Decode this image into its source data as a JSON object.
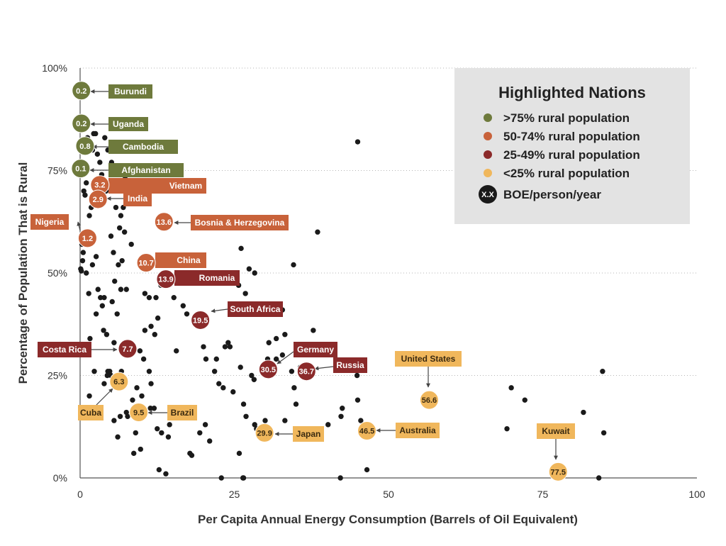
{
  "chart_data": {
    "type": "scatter",
    "xlabel": "Per Capita Annual Energy Consumption (Barrels of Oil Equivalent)",
    "ylabel": "Percentage of Population That is Rural",
    "xlim": [
      0,
      100
    ],
    "ylim": [
      0,
      100
    ],
    "x_ticks": [
      {
        "value": 0,
        "label": "0"
      },
      {
        "value": 25,
        "label": "25"
      },
      {
        "value": 50,
        "label": "50"
      },
      {
        "value": 75,
        "label": "75"
      },
      {
        "value": 100,
        "label": "100"
      }
    ],
    "y_ticks": [
      {
        "value": 0,
        "label": "0%"
      },
      {
        "value": 25,
        "label": "25%"
      },
      {
        "value": 50,
        "label": "50%"
      },
      {
        "value": 75,
        "label": "75%"
      },
      {
        "value": 100,
        "label": "100%"
      }
    ],
    "grid": "horizontal-dotted",
    "colors": {
      "gt75": "#6e7a3c",
      "r50_74": "#c8623a",
      "r25_49": "#8b2a2a",
      "lt25": "#f0b75c",
      "other": "#1a1a1a"
    },
    "legend": {
      "position": "top-right",
      "title": "Highlighted Nations",
      "items": [
        {
          "label": ">75% rural population",
          "group": "gt75"
        },
        {
          "label": "50-74% rural population",
          "group": "r50_74"
        },
        {
          "label": "25-49% rural population",
          "group": "r25_49"
        },
        {
          "label": "<25% rural population",
          "group": "lt25"
        },
        {
          "label": "BOE/person/year",
          "group": "other",
          "badge": "X.X"
        }
      ]
    },
    "highlighted": [
      {
        "name": "Burundi",
        "value": "0.2",
        "x": 0.2,
        "y": 94.5,
        "group": "gt75"
      },
      {
        "name": "Uganda",
        "value": "0.2",
        "x": 0.2,
        "y": 86.5,
        "group": "gt75"
      },
      {
        "name": "Cambodia",
        "value": "0.8",
        "x": 0.8,
        "y": 81,
        "group": "gt75"
      },
      {
        "name": "Afghanistan",
        "value": "0.1",
        "x": 0.1,
        "y": 75.5,
        "group": "gt75"
      },
      {
        "name": "Vietnam",
        "value": "3.2",
        "x": 3.2,
        "y": 71.5,
        "group": "r50_74"
      },
      {
        "name": "India",
        "value": "2.9",
        "x": 2.9,
        "y": 68,
        "group": "r50_74"
      },
      {
        "name": "Nigeria",
        "value": "1.2",
        "x": 1.2,
        "y": 58.5,
        "group": "r50_74"
      },
      {
        "name": "Bosnia & Herzegovina",
        "value": "13.6",
        "x": 13.6,
        "y": 62.5,
        "group": "r50_74"
      },
      {
        "name": "China",
        "value": "10.7",
        "x": 10.7,
        "y": 52.5,
        "group": "r50_74"
      },
      {
        "name": "Romania",
        "value": "13.9",
        "x": 13.9,
        "y": 48.5,
        "group": "r25_49"
      },
      {
        "name": "South Africa",
        "value": "19.5",
        "x": 19.5,
        "y": 38.5,
        "group": "r25_49"
      },
      {
        "name": "Costa Rica",
        "value": "7.7",
        "x": 7.7,
        "y": 31.5,
        "group": "r25_49"
      },
      {
        "name": "Germany",
        "value": "30.5",
        "x": 30.5,
        "y": 26.5,
        "group": "r25_49"
      },
      {
        "name": "Russia",
        "value": "36.7",
        "x": 36.7,
        "y": 26,
        "group": "r25_49"
      },
      {
        "name": "Cuba",
        "value": "6.3",
        "x": 6.3,
        "y": 23.5,
        "group": "lt25"
      },
      {
        "name": "Brazil",
        "value": "9.5",
        "x": 9.5,
        "y": 16,
        "group": "lt25"
      },
      {
        "name": "Japan",
        "value": "29.9",
        "x": 29.9,
        "y": 11,
        "group": "lt25"
      },
      {
        "name": "Australia",
        "value": "46.5",
        "x": 46.5,
        "y": 11.5,
        "group": "lt25"
      },
      {
        "name": "United States",
        "value": "56.6",
        "x": 56.6,
        "y": 19,
        "group": "lt25"
      },
      {
        "name": "Kuwait",
        "value": "77.5",
        "x": 77.5,
        "y": 1.5,
        "group": "lt25"
      }
    ],
    "other_points": [
      [
        0.1,
        51
      ],
      [
        0.2,
        50.5
      ],
      [
        0.3,
        57
      ],
      [
        0.4,
        53
      ],
      [
        0.5,
        55
      ],
      [
        0.6,
        70
      ],
      [
        0.8,
        69
      ],
      [
        1,
        72
      ],
      [
        1.2,
        83
      ],
      [
        1.5,
        64
      ],
      [
        1.8,
        66
      ],
      [
        2,
        80
      ],
      [
        2.2,
        84
      ],
      [
        2.5,
        84
      ],
      [
        2.8,
        79
      ],
      [
        1,
        50
      ],
      [
        1.4,
        45
      ],
      [
        2,
        52
      ],
      [
        2.6,
        54
      ],
      [
        2.9,
        46
      ],
      [
        3.3,
        44
      ],
      [
        3.6,
        42
      ],
      [
        3.9,
        44
      ],
      [
        2.6,
        40
      ],
      [
        1.6,
        34
      ],
      [
        2.3,
        26
      ],
      [
        1.5,
        20
      ],
      [
        3.8,
        36
      ],
      [
        4.3,
        35
      ],
      [
        5.5,
        33
      ],
      [
        6,
        40
      ],
      [
        5.2,
        43
      ],
      [
        5.6,
        48
      ],
      [
        6.6,
        46
      ],
      [
        7.5,
        46
      ],
      [
        6.2,
        52
      ],
      [
        6.8,
        53
      ],
      [
        5.4,
        55
      ],
      [
        6.4,
        61
      ],
      [
        7.2,
        60
      ],
      [
        6.6,
        64
      ],
      [
        5.8,
        66
      ],
      [
        6.6,
        71
      ],
      [
        4,
        83
      ],
      [
        4.5,
        80
      ],
      [
        5.1,
        77
      ],
      [
        6,
        81
      ],
      [
        7.3,
        73
      ],
      [
        10.5,
        36
      ],
      [
        11.5,
        37
      ],
      [
        12.1,
        35
      ],
      [
        10.5,
        45
      ],
      [
        11.2,
        44
      ],
      [
        12.3,
        44
      ],
      [
        13.1,
        47
      ],
      [
        12.6,
        39
      ],
      [
        13.9,
        50
      ],
      [
        15.2,
        44
      ],
      [
        15.6,
        31
      ],
      [
        16.7,
        42
      ],
      [
        17.3,
        40
      ],
      [
        20,
        32
      ],
      [
        20.4,
        29
      ],
      [
        22.1,
        29
      ],
      [
        23.5,
        32
      ],
      [
        24,
        33
      ],
      [
        24.3,
        32
      ],
      [
        26,
        27
      ],
      [
        27.8,
        25
      ],
      [
        28.2,
        24
      ],
      [
        31.2,
        27
      ],
      [
        30.4,
        29
      ],
      [
        31.8,
        29
      ],
      [
        32.8,
        30
      ],
      [
        34.3,
        26
      ],
      [
        34.7,
        22
      ],
      [
        30.6,
        33
      ],
      [
        31.8,
        34
      ],
      [
        33.2,
        35
      ],
      [
        32.8,
        41
      ],
      [
        37.8,
        36
      ],
      [
        35.7,
        27
      ],
      [
        36.1,
        25
      ],
      [
        25.7,
        47
      ],
      [
        27.4,
        51
      ],
      [
        26.8,
        45
      ],
      [
        28.3,
        50
      ],
      [
        26.1,
        56
      ],
      [
        34.6,
        52
      ],
      [
        38.5,
        60
      ],
      [
        45,
        82
      ],
      [
        44.9,
        25
      ],
      [
        45,
        19
      ],
      [
        45.5,
        14
      ],
      [
        46,
        11
      ],
      [
        46.5,
        2
      ],
      [
        42.5,
        17
      ],
      [
        42.3,
        15
      ],
      [
        40.2,
        13
      ],
      [
        37.5,
        11
      ],
      [
        35,
        18
      ],
      [
        33.2,
        14
      ],
      [
        30,
        14
      ],
      [
        29.2,
        11
      ],
      [
        28.6,
        12
      ],
      [
        28.3,
        13
      ],
      [
        26.9,
        15
      ],
      [
        26.4,
        0
      ],
      [
        26.5,
        0
      ],
      [
        25.8,
        6
      ],
      [
        22.5,
        23
      ],
      [
        23.2,
        22
      ],
      [
        24.8,
        21
      ],
      [
        26.5,
        18
      ],
      [
        21.8,
        26
      ],
      [
        20.3,
        13
      ],
      [
        21,
        9
      ],
      [
        19.4,
        11
      ],
      [
        17.8,
        6
      ],
      [
        18.1,
        5.5
      ],
      [
        17.5,
        17
      ],
      [
        16,
        15
      ],
      [
        15,
        16
      ],
      [
        14.5,
        13
      ],
      [
        14.3,
        10
      ],
      [
        13.2,
        11
      ],
      [
        12.5,
        12
      ],
      [
        12.8,
        2
      ],
      [
        13.9,
        1
      ],
      [
        11.4,
        17
      ],
      [
        10,
        20
      ],
      [
        9.2,
        22
      ],
      [
        8.5,
        19
      ],
      [
        9.8,
        7
      ],
      [
        8.7,
        6
      ],
      [
        7.5,
        16
      ],
      [
        7.7,
        15
      ],
      [
        6.5,
        15
      ],
      [
        6.1,
        10
      ],
      [
        5.5,
        14
      ],
      [
        5,
        25
      ],
      [
        4.8,
        26
      ],
      [
        3.9,
        23
      ],
      [
        9,
        11
      ],
      [
        10.3,
        29
      ],
      [
        11.2,
        26
      ],
      [
        11.5,
        23
      ],
      [
        12,
        17
      ],
      [
        9.7,
        31
      ],
      [
        4.4,
        25
      ],
      [
        6.7,
        26
      ],
      [
        22.9,
        0
      ],
      [
        42.2,
        0
      ],
      [
        69.2,
        12
      ],
      [
        69.9,
        22
      ],
      [
        72.1,
        19
      ],
      [
        81.6,
        16
      ],
      [
        84.7,
        26
      ],
      [
        84.9,
        11
      ],
      [
        84.1,
        0
      ],
      [
        4.5,
        26
      ],
      [
        3.5,
        74
      ],
      [
        3.2,
        77
      ],
      [
        5,
        59
      ],
      [
        8.3,
        57
      ],
      [
        8.8,
        68
      ],
      [
        9.5,
        74
      ],
      [
        4.2,
        70
      ],
      [
        7,
        66
      ],
      [
        10,
        72
      ]
    ]
  }
}
